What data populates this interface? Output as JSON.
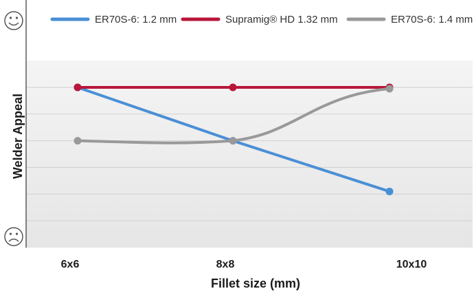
{
  "chart_data": {
    "type": "line",
    "title": "",
    "xlabel": "Fillet size (mm)",
    "ylabel": "Welder Appeal",
    "categories": [
      "6x6",
      "8x8",
      "10x10"
    ],
    "ylim": [
      0,
      6
    ],
    "grid": true,
    "legend_position": "top",
    "y_axis_icons": {
      "top": "smiley-face-icon",
      "bottom": "frowning-face-icon"
    },
    "series": [
      {
        "name": "ER70S-6: 1.2 mm",
        "color": "#4a8fd6",
        "x": [
          0,
          1,
          2
        ],
        "values": [
          5,
          3,
          1.1
        ]
      },
      {
        "name": "Supramig® HD 1.32 mm",
        "color": "#b8163a",
        "x": [
          0,
          1,
          2
        ],
        "values": [
          5,
          5,
          5
        ]
      },
      {
        "name": "ER70S-6: 1.4 mm",
        "color": "#999999",
        "x": [
          0,
          1,
          2
        ],
        "values": [
          3,
          3,
          4.95
        ]
      }
    ]
  }
}
